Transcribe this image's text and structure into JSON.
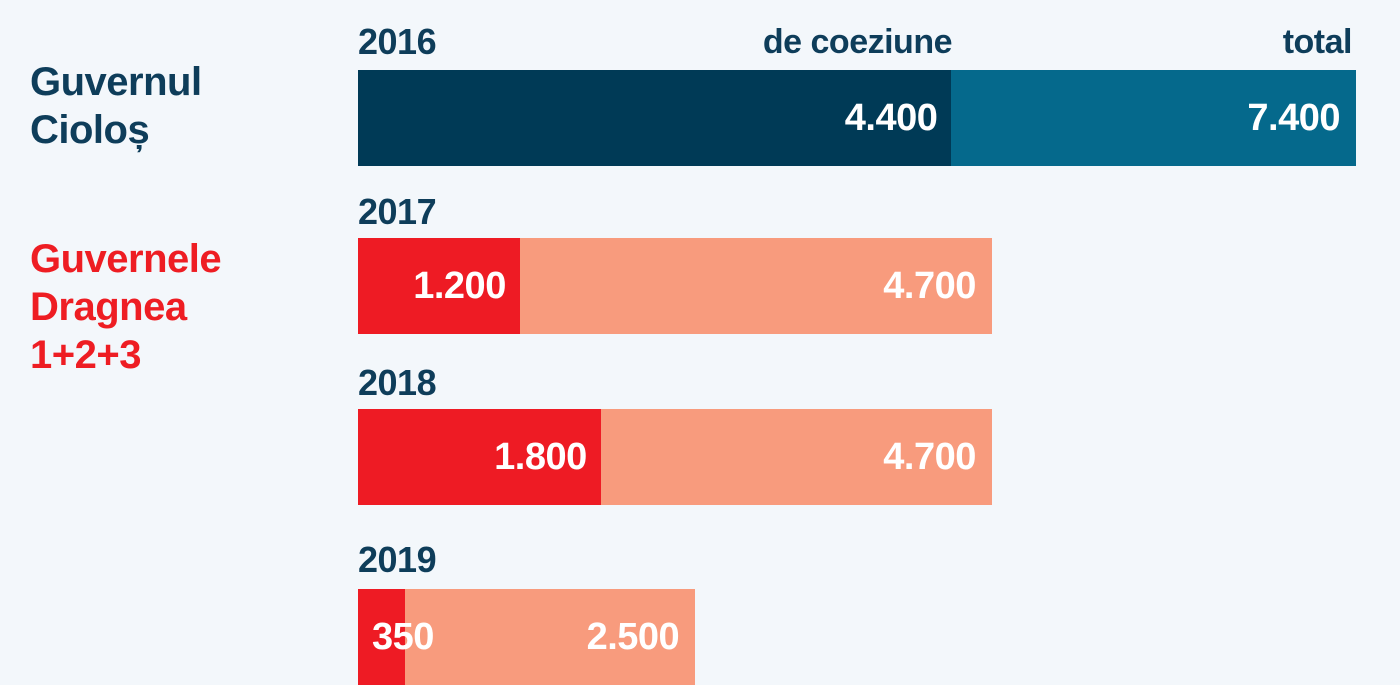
{
  "colors": {
    "background": "#f3f7fb",
    "ciolos_cohesion": "#003a56",
    "ciolos_total": "#05698c",
    "dragnea_cohesion": "#ee1b24",
    "dragnea_total": "#f89b7d",
    "ciolos_text": "#0e3d5a",
    "dragnea_text": "#ee1d23"
  },
  "groups": {
    "ciolos": "Guvernul\nCioloș",
    "dragnea": "Guvernele\nDragnea\n1+2+3"
  },
  "headers": {
    "cohesion": "de coeziune",
    "total": "total"
  },
  "chart_data": {
    "type": "bar",
    "orientation": "horizontal",
    "stacked": "overlay",
    "categories": [
      "2016",
      "2017",
      "2018",
      "2019"
    ],
    "series": [
      {
        "name": "de coeziune",
        "values": [
          4400,
          1200,
          1800,
          350
        ],
        "labels": [
          "4.400",
          "1.200",
          "1.800",
          "350"
        ]
      },
      {
        "name": "total",
        "values": [
          7400,
          4700,
          4700,
          2500
        ],
        "labels": [
          "7.400",
          "4.700",
          "4.700",
          "2.500"
        ]
      }
    ],
    "xlim": [
      0,
      7400
    ],
    "grid": false
  }
}
